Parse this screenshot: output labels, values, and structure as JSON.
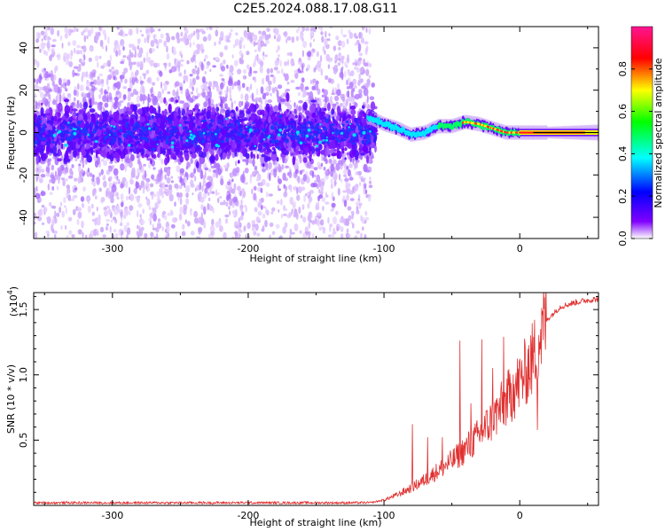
{
  "title": "C2E5.2024.088.17.08.G11",
  "chart_data": [
    {
      "type": "heatmap",
      "xlabel": "Height of straight line (km)",
      "ylabel": "Frequency (Hz)",
      "xlim": [
        -358,
        58
      ],
      "ylim": [
        -50,
        50
      ],
      "xticks": [
        "-300",
        "-200",
        "-100",
        "0"
      ],
      "xtick_values": [
        -300,
        -200,
        -100,
        0
      ],
      "yticks": [
        "-40",
        "-20",
        "0",
        "20",
        "40"
      ],
      "ytick_values": [
        -40,
        -20,
        0,
        20,
        40
      ],
      "colorbar": {
        "label": "Normalized spectral amplitude",
        "range": [
          0,
          1
        ],
        "ticks": [
          "0.0",
          "0.2",
          "0.4",
          "0.6",
          "0.8"
        ],
        "tick_values": [
          0,
          0.2,
          0.4,
          0.6,
          0.8
        ],
        "colors": [
          "#ffffff",
          "#d9b6ff",
          "#8a2be2",
          "#3b1cff",
          "#00e5ff",
          "#00ff00",
          "#ffff00",
          "#ff0000",
          "#ff1493"
        ]
      },
      "center_track": {
        "x": [
          -110,
          -100,
          -90,
          -80,
          -70,
          -60,
          -50,
          -40,
          -30,
          -20,
          -10,
          0,
          10,
          20,
          30,
          40,
          50,
          58
        ],
        "y": [
          7,
          4,
          2,
          -1,
          0,
          3,
          3,
          5,
          4,
          2,
          0,
          0,
          0,
          0,
          0,
          0,
          0,
          0
        ]
      },
      "grid": false
    },
    {
      "type": "line",
      "xlabel": "Height of straight line (km)",
      "ylabel": "SNR (10 * v/v)",
      "y_multiplier_label": "(x10",
      "y_multiplier_exp": "4",
      "xlim": [
        -358,
        58
      ],
      "ylim": [
        0,
        1.63
      ],
      "xticks": [
        "-300",
        "-200",
        "-100",
        "0"
      ],
      "xtick_values": [
        -300,
        -200,
        -100,
        0
      ],
      "yticks": [
        "0.5",
        "1.0",
        "1.5"
      ],
      "ytick_values": [
        0.5,
        1.0,
        1.5
      ],
      "series_color": "#e03030",
      "x": [
        -358,
        -300,
        -200,
        -110,
        -100,
        -90,
        -80,
        -70,
        -60,
        -50,
        -40,
        -30,
        -20,
        -10,
        0,
        10,
        20,
        30,
        40,
        50,
        58
      ],
      "y": [
        0.02,
        0.02,
        0.02,
        0.02,
        0.04,
        0.08,
        0.13,
        0.19,
        0.26,
        0.33,
        0.42,
        0.52,
        0.64,
        0.78,
        0.92,
        1.1,
        1.42,
        1.52,
        1.55,
        1.57,
        1.58
      ],
      "spikes": [
        {
          "x": -79,
          "y": 0.62
        },
        {
          "x": -68,
          "y": 0.52
        },
        {
          "x": -57,
          "y": 0.52
        },
        {
          "x": -44,
          "y": 1.26
        },
        {
          "x": -36,
          "y": 0.78
        },
        {
          "x": -28,
          "y": 1.27
        },
        {
          "x": -20,
          "y": 1.05
        },
        {
          "x": -12,
          "y": 1.29
        },
        {
          "x": -5,
          "y": 1.0
        },
        {
          "x": 4,
          "y": 1.24
        },
        {
          "x": 13,
          "y": 0.58
        },
        {
          "x": 16,
          "y": 1.51
        }
      ],
      "grid": false
    }
  ]
}
